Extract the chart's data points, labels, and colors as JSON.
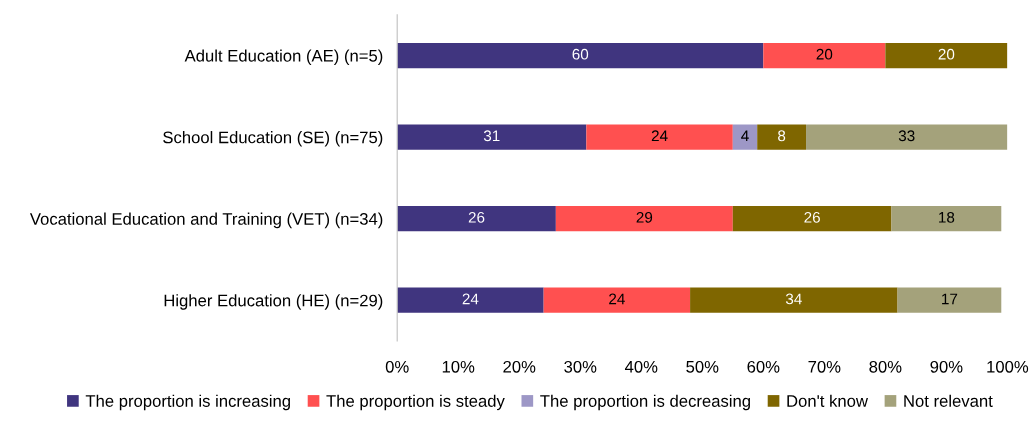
{
  "chart_data": {
    "type": "bar",
    "orientation": "horizontal",
    "stacked": true,
    "data_labels": true,
    "legend": "bottom",
    "grid": false,
    "categories": [
      "Adult Education (AE) (n=5)",
      "School Education (SE) (n=75)",
      "Vocational Education and Training (VET) (n=34)",
      "Higher Education (HE) (n=29)"
    ],
    "xlim": [
      0,
      100
    ],
    "xticks": [
      {
        "value": 0,
        "label": "0%"
      },
      {
        "value": 10,
        "label": "10%"
      },
      {
        "value": 20,
        "label": "20%"
      },
      {
        "value": 30,
        "label": "30%"
      },
      {
        "value": 40,
        "label": "40%"
      },
      {
        "value": 50,
        "label": "50%"
      },
      {
        "value": 60,
        "label": "60%"
      },
      {
        "value": 70,
        "label": "70%"
      },
      {
        "value": 80,
        "label": "80%"
      },
      {
        "value": 90,
        "label": "90%"
      },
      {
        "value": 100,
        "label": "100%"
      }
    ],
    "series": [
      {
        "name": "The proportion is increasing",
        "color": "#40357f",
        "values": [
          60,
          31,
          26,
          24
        ]
      },
      {
        "name": "The proportion is steady",
        "color": "#ff5050",
        "values": [
          20,
          24,
          29,
          24
        ]
      },
      {
        "name": "The proportion is decreasing",
        "color": "#9d97c6",
        "values": [
          null,
          4,
          null,
          null
        ]
      },
      {
        "name": "Don't know",
        "color": "#7f6600",
        "values": [
          20,
          8,
          26,
          34
        ]
      },
      {
        "name": "Not relevant",
        "color": "#a4a27b",
        "values": [
          null,
          33,
          18,
          17
        ]
      }
    ]
  }
}
